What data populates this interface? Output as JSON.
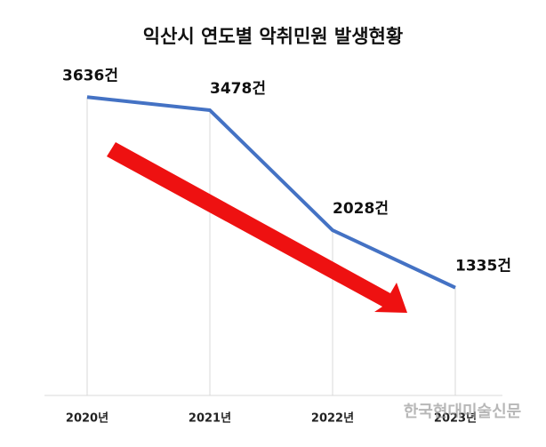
{
  "chart_data": {
    "type": "line",
    "title": "익산시 연도별 악취민원 발생현황",
    "categories": [
      "2020년",
      "2021년",
      "2022년",
      "2023년"
    ],
    "series": [
      {
        "name": "악취민원",
        "color": "#4472c4",
        "values": [
          3636,
          3478,
          2028,
          1335
        ],
        "value_labels": [
          "3636건",
          "3478건",
          "2028건",
          "1335건"
        ]
      }
    ],
    "ylim": [
      0,
      3800
    ],
    "grid": true
  },
  "watermark": "한국현대미술신문"
}
